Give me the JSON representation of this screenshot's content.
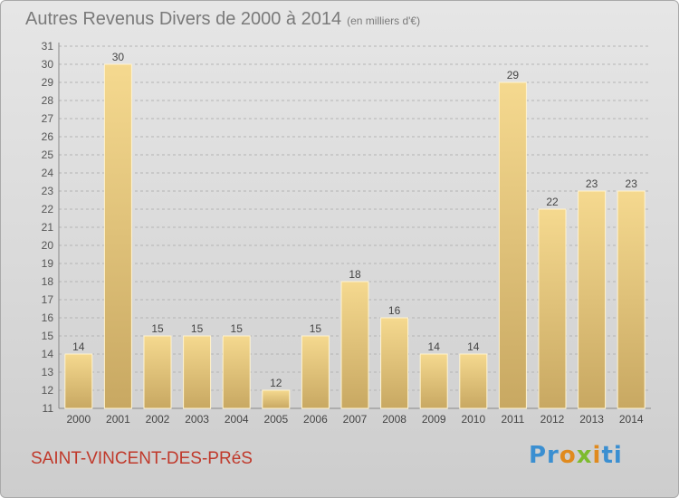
{
  "chart_data": {
    "type": "bar",
    "title": "Autres Revenus Divers de 2000 à 2014",
    "subtitle": "(en milliers d'€)",
    "categories": [
      "2000",
      "2001",
      "2002",
      "2003",
      "2004",
      "2005",
      "2006",
      "2007",
      "2008",
      "2009",
      "2010",
      "2011",
      "2012",
      "2013",
      "2014"
    ],
    "values": [
      14,
      30,
      15,
      15,
      15,
      12,
      15,
      18,
      16,
      14,
      14,
      29,
      22,
      23,
      23
    ],
    "ylim": [
      11,
      31
    ],
    "yticks": [
      11,
      12,
      13,
      14,
      15,
      16,
      17,
      18,
      19,
      20,
      21,
      22,
      23,
      24,
      25,
      26,
      27,
      28,
      29,
      30,
      31
    ],
    "grid": true,
    "colors": {
      "bar_top": "#f5d98f",
      "bar_bottom": "#c8a862",
      "grid": "#b4b4b4"
    }
  },
  "location": "SAINT-VINCENT-DES-PRéS",
  "logo": {
    "text": "Proxiti"
  }
}
